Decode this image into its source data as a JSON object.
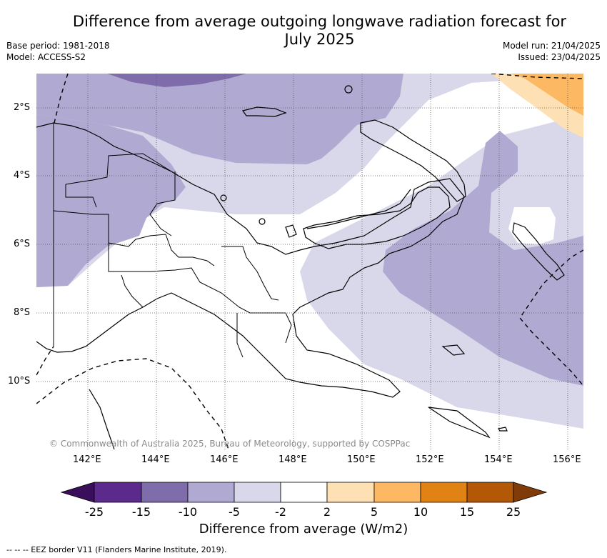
{
  "header": {
    "title_line1": "Difference from average outgoing longwave radiation forecast for",
    "title_line2": "July 2025",
    "base_period": "Base period: 1981-2018",
    "model": "Model: ACCESS-S2",
    "model_run": "Model run: 21/04/2025",
    "issued": "Issued: 23/04/2025"
  },
  "map": {
    "copyright": "© Commonwealth of Australia 2025, Bureau of Meteorology, supported by COSPPac",
    "lat_labels": [
      "2°S",
      "4°S",
      "6°S",
      "8°S",
      "10°S"
    ],
    "lon_labels": [
      "142°E",
      "144°E",
      "146°E",
      "148°E",
      "150°E",
      "152°E",
      "154°E",
      "156°E"
    ]
  },
  "colorbar": {
    "title": "Difference from average (W/m2)",
    "tick_labels": [
      "-25",
      "-15",
      "-10",
      "-5",
      "-2",
      "2",
      "5",
      "10",
      "15",
      "25"
    ],
    "colors": {
      "below_min": "#3a0e5a",
      "lt_-15": "#5c2a8c",
      "-15_-10": "#7e6daa",
      "-10_-5": "#b0aad2",
      "-5_-2": "#d9d8ea",
      "-2_2": "#ffffff",
      "2_5": "#fee0b5",
      "5_10": "#fdb863",
      "10_15": "#e08214",
      "15_25": "#b35806",
      "above_max": "#7f3b08"
    }
  },
  "legend": {
    "eez_note": "-- -- -- EEZ border V11 (Flanders Marine Institute, 2019)."
  }
}
